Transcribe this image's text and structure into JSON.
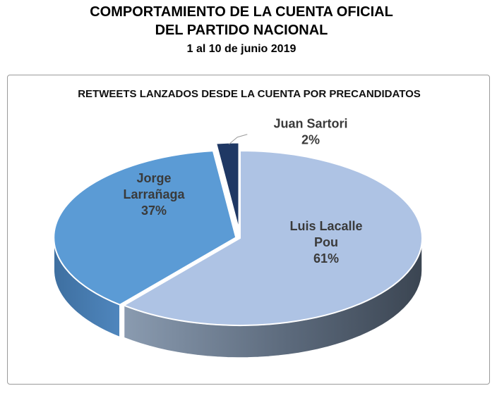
{
  "header": {
    "title_line1": "COMPORTAMIENTO DE LA CUENTA OFICIAL",
    "title_line2": "DEL PARTIDO NACIONAL",
    "date_range": "1 al 10 de junio 2019"
  },
  "chart_data": {
    "type": "pie",
    "title": "RETWEETS LANZADOS DESDE LA CUENTA POR PRECANDIDATOS",
    "style": "3d-exploded",
    "slices": [
      {
        "label_lines": [
          "Luis Lacalle",
          "Pou"
        ],
        "percent_label": "61%",
        "value": 61,
        "color": "#aec3e4"
      },
      {
        "label_lines": [
          "Jorge",
          "Larrañaga"
        ],
        "percent_label": "37%",
        "value": 37,
        "color": "#5b9bd5"
      },
      {
        "label_lines": [
          "Juan Sartori"
        ],
        "percent_label": "2%",
        "value": 2,
        "color": "#1f3864"
      }
    ]
  }
}
